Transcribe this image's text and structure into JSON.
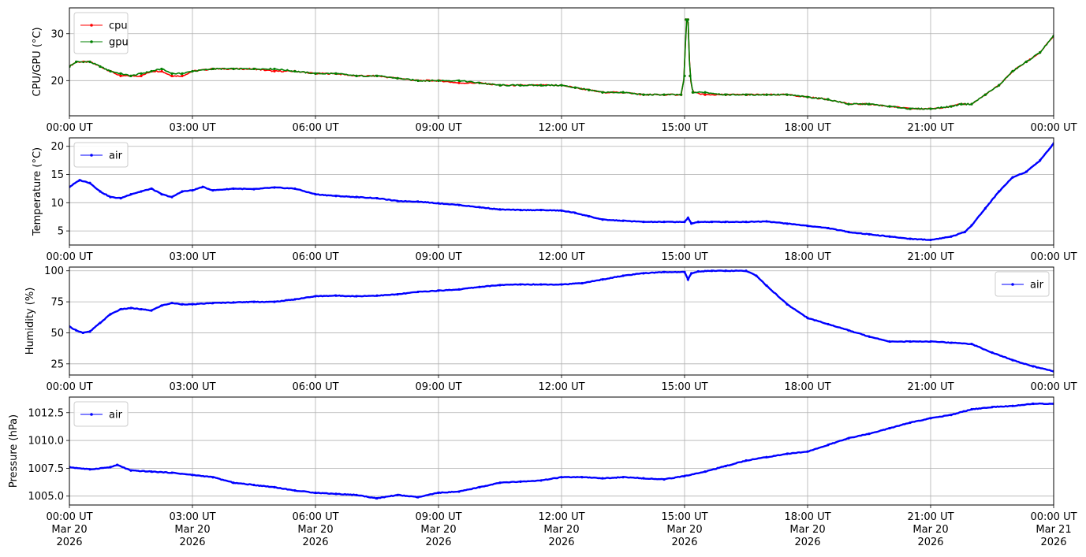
{
  "chart_data": [
    {
      "type": "line",
      "ylabel": "CPU/GPU (°C)",
      "ylim": [
        12.5,
        35.5
      ],
      "yticks": [
        20,
        30
      ],
      "xlim": [
        "2026-03-20T00:00Z",
        "2026-03-21T00:00Z"
      ],
      "xtick_labels": [
        "00:00 UT",
        "03:00 UT",
        "06:00 UT",
        "09:00 UT",
        "12:00 UT",
        "15:00 UT",
        "18:00 UT",
        "21:00 UT",
        "00:00 UT"
      ],
      "grid": true,
      "legend": "upper left",
      "series": [
        {
          "name": "cpu",
          "color": "#ff0000",
          "x": [
            "00:00",
            "00:10",
            "00:30",
            "00:45",
            "01:00",
            "01:15",
            "01:30",
            "01:45",
            "02:00",
            "02:15",
            "02:30",
            "02:45",
            "03:00",
            "03:30",
            "04:00",
            "04:30",
            "05:00",
            "05:30",
            "06:00",
            "06:30",
            "07:00",
            "07:30",
            "08:00",
            "08:30",
            "09:00",
            "09:30",
            "10:00",
            "10:30",
            "11:00",
            "11:30",
            "12:00",
            "12:20",
            "12:40",
            "13:00",
            "13:30",
            "14:00",
            "14:30",
            "14:55",
            "15:00",
            "15:02",
            "15:05",
            "15:08",
            "15:12",
            "15:30",
            "16:00",
            "16:30",
            "17:00",
            "17:30",
            "18:00",
            "18:30",
            "19:00",
            "19:30",
            "20:00",
            "20:30",
            "21:00",
            "21:30",
            "21:45",
            "22:00",
            "22:20",
            "22:40",
            "23:00",
            "23:20",
            "23:40",
            "24:00"
          ],
          "y": [
            23,
            24,
            24,
            23,
            22,
            21,
            21,
            21,
            22,
            22,
            21,
            21,
            22,
            22.5,
            22.5,
            22.5,
            22,
            22,
            21.5,
            21.5,
            21,
            21,
            20.5,
            20,
            20,
            19.5,
            19.5,
            19,
            19,
            19,
            19,
            18.5,
            18,
            17.5,
            17.5,
            17,
            17,
            17,
            21,
            33,
            33,
            21,
            17.5,
            17,
            17,
            17,
            17,
            17,
            16.5,
            16,
            15,
            15,
            14.5,
            14,
            14,
            14.5,
            15,
            15,
            17,
            19,
            22,
            24,
            26,
            29.5
          ]
        },
        {
          "name": "gpu",
          "color": "#008000",
          "x": [
            "00:00",
            "00:10",
            "00:30",
            "00:45",
            "01:00",
            "01:15",
            "01:30",
            "01:45",
            "02:00",
            "02:15",
            "02:30",
            "02:45",
            "03:00",
            "03:30",
            "04:00",
            "04:30",
            "05:00",
            "05:30",
            "06:00",
            "06:30",
            "07:00",
            "07:30",
            "08:00",
            "08:30",
            "09:00",
            "09:30",
            "10:00",
            "10:30",
            "11:00",
            "11:30",
            "12:00",
            "12:20",
            "12:40",
            "13:00",
            "13:30",
            "14:00",
            "14:30",
            "14:55",
            "15:00",
            "15:02",
            "15:05",
            "15:08",
            "15:12",
            "15:30",
            "16:00",
            "16:30",
            "17:00",
            "17:30",
            "18:00",
            "18:30",
            "19:00",
            "19:30",
            "20:00",
            "20:30",
            "21:00",
            "21:30",
            "21:45",
            "22:00",
            "22:20",
            "22:40",
            "23:00",
            "23:20",
            "23:40",
            "24:00"
          ],
          "y": [
            23,
            24,
            24,
            23,
            22,
            21.5,
            21,
            21.5,
            22,
            22.5,
            21.5,
            21.5,
            22,
            22.5,
            22.5,
            22.5,
            22.5,
            22,
            21.5,
            21.5,
            21,
            21,
            20.5,
            20,
            20,
            20,
            19.5,
            19,
            19,
            19,
            19,
            18.5,
            18,
            17.5,
            17.5,
            17,
            17,
            17,
            21,
            33,
            33,
            21,
            17.5,
            17.5,
            17,
            17,
            17,
            17,
            16.5,
            16,
            15,
            15,
            14.5,
            14,
            14,
            14.5,
            15,
            15,
            17,
            19,
            22,
            24,
            26,
            29.5
          ]
        }
      ]
    },
    {
      "type": "line",
      "ylabel": "Temperature (°C)",
      "ylim": [
        2.5,
        21.5
      ],
      "yticks": [
        5,
        10,
        15,
        20
      ],
      "xlim": [
        "2026-03-20T00:00Z",
        "2026-03-21T00:00Z"
      ],
      "xtick_labels": [
        "00:00 UT",
        "03:00 UT",
        "06:00 UT",
        "09:00 UT",
        "12:00 UT",
        "15:00 UT",
        "18:00 UT",
        "21:00 UT",
        "00:00 UT"
      ],
      "grid": true,
      "legend": "upper left",
      "series": [
        {
          "name": "air",
          "color": "#0000ff",
          "x": [
            "00:00",
            "00:15",
            "00:30",
            "00:45",
            "01:00",
            "01:15",
            "01:30",
            "01:45",
            "02:00",
            "02:15",
            "02:30",
            "02:45",
            "03:00",
            "03:15",
            "03:30",
            "04:00",
            "04:30",
            "05:00",
            "05:30",
            "06:00",
            "06:30",
            "07:00",
            "07:30",
            "08:00",
            "08:30",
            "09:00",
            "09:30",
            "10:00",
            "10:30",
            "11:00",
            "11:30",
            "12:00",
            "12:20",
            "12:40",
            "13:00",
            "13:30",
            "14:00",
            "14:30",
            "15:00",
            "15:05",
            "15:10",
            "15:20",
            "15:40",
            "16:00",
            "16:30",
            "17:00",
            "17:30",
            "18:00",
            "18:30",
            "19:00",
            "19:30",
            "20:00",
            "20:30",
            "21:00",
            "21:30",
            "21:50",
            "22:00",
            "22:20",
            "22:40",
            "23:00",
            "23:20",
            "23:40",
            "24:00"
          ],
          "y": [
            12.8,
            14.0,
            13.5,
            12.0,
            11.0,
            10.8,
            11.5,
            12.0,
            12.5,
            11.5,
            11.0,
            12.0,
            12.2,
            12.8,
            12.2,
            12.5,
            12.4,
            12.7,
            12.5,
            11.5,
            11.2,
            11.0,
            10.8,
            10.3,
            10.2,
            9.9,
            9.6,
            9.2,
            8.8,
            8.7,
            8.7,
            8.6,
            8.2,
            7.6,
            7.0,
            6.8,
            6.6,
            6.6,
            6.6,
            7.3,
            6.3,
            6.6,
            6.6,
            6.6,
            6.6,
            6.7,
            6.3,
            5.9,
            5.5,
            4.8,
            4.4,
            4.0,
            3.6,
            3.4,
            4.0,
            4.8,
            6.0,
            9.0,
            12.0,
            14.5,
            15.5,
            17.5,
            20.5
          ]
        }
      ]
    },
    {
      "type": "line",
      "ylabel": "Humidity (%)",
      "ylim": [
        16,
        103
      ],
      "yticks": [
        25,
        50,
        75,
        100
      ],
      "xlim": [
        "2026-03-20T00:00Z",
        "2026-03-21T00:00Z"
      ],
      "xtick_labels": [
        "00:00 UT",
        "03:00 UT",
        "06:00 UT",
        "09:00 UT",
        "12:00 UT",
        "15:00 UT",
        "18:00 UT",
        "21:00 UT",
        "00:00 UT"
      ],
      "grid": true,
      "legend": "upper right",
      "series": [
        {
          "name": "air",
          "color": "#0000ff",
          "x": [
            "00:00",
            "00:10",
            "00:20",
            "00:30",
            "00:45",
            "01:00",
            "01:15",
            "01:30",
            "01:45",
            "02:00",
            "02:15",
            "02:30",
            "02:45",
            "03:00",
            "03:30",
            "04:00",
            "04:30",
            "05:00",
            "05:30",
            "06:00",
            "06:30",
            "07:00",
            "07:30",
            "08:00",
            "08:30",
            "09:00",
            "09:30",
            "10:00",
            "10:30",
            "11:00",
            "11:30",
            "12:00",
            "12:30",
            "13:00",
            "13:30",
            "14:00",
            "14:30",
            "15:00",
            "15:05",
            "15:10",
            "15:20",
            "15:40",
            "16:00",
            "16:30",
            "16:45",
            "17:00",
            "17:30",
            "18:00",
            "18:30",
            "19:00",
            "19:30",
            "20:00",
            "20:30",
            "21:00",
            "21:30",
            "22:00",
            "22:30",
            "23:00",
            "23:30",
            "24:00"
          ],
          "y": [
            55,
            52,
            50,
            51,
            58,
            65,
            69,
            70,
            69,
            68,
            72,
            74,
            73,
            73,
            74,
            74.5,
            75,
            75,
            77,
            79.5,
            80,
            79.5,
            80,
            81,
            83,
            84,
            85,
            87,
            88.5,
            89,
            89,
            89,
            90,
            93,
            96,
            98,
            99,
            99,
            93,
            98,
            99.5,
            100,
            100,
            100,
            96,
            88,
            73,
            62,
            57,
            52,
            47,
            43,
            43,
            43,
            42,
            41,
            34,
            28,
            23,
            19
          ]
        }
      ]
    },
    {
      "type": "line",
      "ylabel": "Pressure (hPa)",
      "ylim": [
        1004.2,
        1013.9
      ],
      "yticks": [
        1005.0,
        1007.5,
        1010.0,
        1012.5
      ],
      "ytick_labels": [
        "1005.0",
        "1007.5",
        "1010.0",
        "1012.5"
      ],
      "xlim": [
        "2026-03-20T00:00Z",
        "2026-03-21T00:00Z"
      ],
      "xtick_labels": [
        "00:00 UT\nMar 20\n2026",
        "03:00 UT\nMar 20\n2026",
        "06:00 UT\nMar 20\n2026",
        "09:00 UT\nMar 20\n2026",
        "12:00 UT\nMar 20\n2026",
        "15:00 UT\nMar 20\n2026",
        "18:00 UT\nMar 20\n2026",
        "21:00 UT\nMar 20\n2026",
        "00:00 UT\nMar 21\n2026"
      ],
      "grid": true,
      "legend": "upper left",
      "series": [
        {
          "name": "air",
          "color": "#0000ff",
          "x": [
            "00:00",
            "00:30",
            "01:00",
            "01:10",
            "01:30",
            "02:00",
            "02:30",
            "03:00",
            "03:30",
            "04:00",
            "04:30",
            "05:00",
            "05:30",
            "06:00",
            "06:30",
            "07:00",
            "07:30",
            "08:00",
            "08:30",
            "09:00",
            "09:30",
            "10:00",
            "10:30",
            "11:00",
            "11:30",
            "12:00",
            "12:30",
            "13:00",
            "13:30",
            "14:00",
            "14:30",
            "15:00",
            "15:30",
            "16:00",
            "16:30",
            "17:00",
            "17:30",
            "18:00",
            "18:30",
            "19:00",
            "19:30",
            "20:00",
            "20:30",
            "21:00",
            "21:30",
            "22:00",
            "22:30",
            "23:00",
            "23:30",
            "24:00"
          ],
          "y": [
            1007.6,
            1007.4,
            1007.6,
            1007.8,
            1007.3,
            1007.2,
            1007.1,
            1006.9,
            1006.7,
            1006.2,
            1006.0,
            1005.8,
            1005.5,
            1005.3,
            1005.2,
            1005.1,
            1004.8,
            1005.1,
            1004.9,
            1005.3,
            1005.4,
            1005.8,
            1006.2,
            1006.3,
            1006.4,
            1006.7,
            1006.7,
            1006.6,
            1006.7,
            1006.6,
            1006.5,
            1006.8,
            1007.2,
            1007.7,
            1008.2,
            1008.5,
            1008.8,
            1009.0,
            1009.6,
            1010.2,
            1010.6,
            1011.1,
            1011.6,
            1012.0,
            1012.3,
            1012.8,
            1013.0,
            1013.1,
            1013.3,
            1013.3
          ]
        }
      ]
    }
  ]
}
